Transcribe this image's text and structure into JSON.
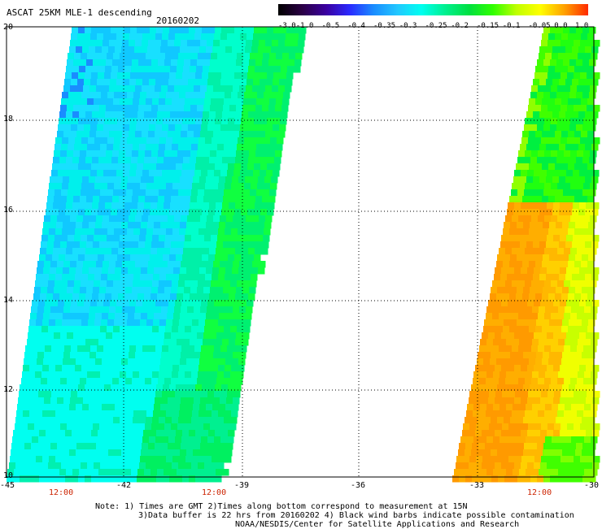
{
  "product": {
    "title": "ASCAT 25KM MLE-1 descending",
    "date": "20160202"
  },
  "colorbar": {
    "labels": [
      "-3.0",
      "-1.0",
      "-0.5",
      "-0.4",
      "-0.35",
      "-0.3",
      "-0.25",
      "-0.2",
      "-0.15",
      "-0.1",
      "-0.05",
      "0.0",
      "1.0"
    ],
    "colors": [
      "#2a0044",
      "#3a00a0",
      "#2a2aff",
      "#1a8cff",
      "#22c8ff",
      "#00fff0",
      "#00f090",
      "#00e040",
      "#30ff00",
      "#c0ff00",
      "#ffff00",
      "#ffa000",
      "#ff2a00"
    ]
  },
  "map": {
    "lon_min": -45,
    "lon_max": -30,
    "lat_min": 10,
    "lat_max": 20,
    "lon_ticks": [
      "-45",
      "-42",
      "-39",
      "-36",
      "-33",
      "-30"
    ],
    "lat_ticks": [
      "20",
      "18",
      "16",
      "14",
      "12",
      "10"
    ],
    "time_labels": [
      "12:00",
      "12:00",
      "12:00"
    ]
  },
  "notes": {
    "line1": "Note: 1) Times are GMT 2)Times along bottom correspond to measurement at 15N",
    "line2": "3)Data buffer is 22 hrs from 20160202 4) Black wind barbs indicate possible contamination",
    "line3": "NOAA/NESDIS/Center for Satellite Applications and Research"
  }
}
